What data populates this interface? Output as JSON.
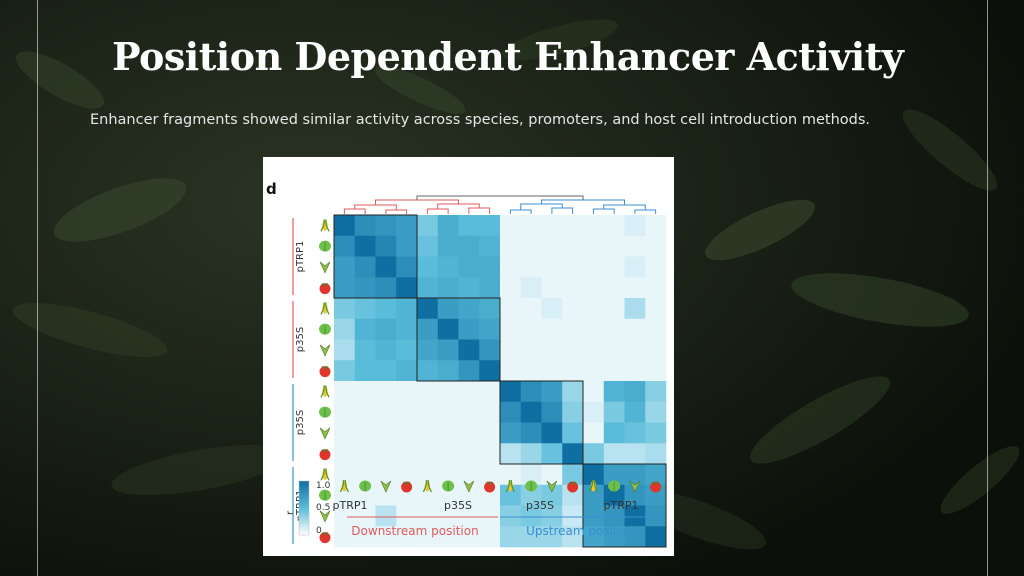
{
  "slide": {
    "title": "Position Dependent Enhancer Activity",
    "subtitle": "Enhancer fragments showed similar activity across species, promoters, and host cell introduction methods."
  },
  "figure": {
    "panel_label": "d",
    "row_groups": [
      "pTRP1",
      "p35S",
      "p35S",
      "pTRP1"
    ],
    "col_groups": [
      "pTRP1",
      "p35S",
      "p35S",
      "pTRP1"
    ],
    "position_labels": [
      "Downstream position",
      "Upstream position"
    ],
    "colorbar": {
      "label": "r",
      "ticks": [
        "1.0",
        "0.5",
        "0"
      ]
    },
    "colors": {
      "downstream": "#e05a5a",
      "upstream": "#3a8fd0",
      "high": "#0f6fa3",
      "low": "#ffffff"
    },
    "species_icons": [
      "maize-icon",
      "arabidopsis-icon",
      "tobacco-icon",
      "tomato-icon"
    ]
  },
  "chart_data": {
    "type": "heatmap",
    "title": "",
    "xlabel": "",
    "ylabel": "",
    "color_scale": [
      0,
      1
    ],
    "groups": [
      {
        "promoter": "pTRP1",
        "position": "Downstream position"
      },
      {
        "promoter": "p35S",
        "position": "Downstream position"
      },
      {
        "promoter": "p35S",
        "position": "Upstream position"
      },
      {
        "promoter": "pTRP1",
        "position": "Upstream position"
      }
    ],
    "species_per_group": [
      "maize",
      "arabidopsis",
      "tobacco",
      "tomato"
    ],
    "values": [
      [
        1.0,
        0.8,
        0.75,
        0.7,
        0.4,
        0.6,
        0.5,
        0.5,
        0.05,
        0.05,
        0.05,
        0.05,
        0.05,
        0.05,
        0.1,
        0.05
      ],
      [
        0.8,
        1.0,
        0.85,
        0.7,
        0.45,
        0.6,
        0.6,
        0.55,
        0.05,
        0.05,
        0.05,
        0.05,
        0.05,
        0.05,
        0.05,
        0.05
      ],
      [
        0.7,
        0.8,
        1.0,
        0.8,
        0.5,
        0.55,
        0.6,
        0.6,
        0.05,
        0.05,
        0.05,
        0.05,
        0.05,
        0.05,
        0.1,
        0.05
      ],
      [
        0.7,
        0.75,
        0.8,
        1.0,
        0.55,
        0.6,
        0.55,
        0.6,
        0.05,
        0.1,
        0.05,
        0.05,
        0.05,
        0.05,
        0.05,
        0.05
      ],
      [
        0.4,
        0.45,
        0.5,
        0.55,
        1.0,
        0.7,
        0.65,
        0.6,
        0.05,
        0.05,
        0.1,
        0.05,
        0.05,
        0.05,
        0.25,
        0.05
      ],
      [
        0.3,
        0.55,
        0.6,
        0.55,
        0.7,
        1.0,
        0.7,
        0.65,
        0.05,
        0.05,
        0.05,
        0.05,
        0.05,
        0.05,
        0.05,
        0.05
      ],
      [
        0.25,
        0.5,
        0.55,
        0.5,
        0.65,
        0.7,
        1.0,
        0.75,
        0.05,
        0.05,
        0.05,
        0.05,
        0.05,
        0.05,
        0.05,
        0.05
      ],
      [
        0.4,
        0.5,
        0.5,
        0.55,
        0.55,
        0.6,
        0.75,
        1.0,
        0.05,
        0.05,
        0.05,
        0.05,
        0.05,
        0.05,
        0.05,
        0.05
      ],
      [
        0.05,
        0.05,
        0.05,
        0.05,
        0.05,
        0.05,
        0.05,
        0.05,
        1.0,
        0.8,
        0.7,
        0.3,
        0.05,
        0.55,
        0.6,
        0.35
      ],
      [
        0.05,
        0.05,
        0.05,
        0.05,
        0.05,
        0.05,
        0.05,
        0.05,
        0.8,
        1.0,
        0.8,
        0.35,
        0.1,
        0.4,
        0.55,
        0.3
      ],
      [
        0.05,
        0.05,
        0.05,
        0.05,
        0.05,
        0.05,
        0.05,
        0.05,
        0.7,
        0.8,
        1.0,
        0.45,
        0.05,
        0.5,
        0.45,
        0.4
      ],
      [
        0.05,
        0.05,
        0.05,
        0.05,
        0.05,
        0.05,
        0.05,
        0.05,
        0.2,
        0.3,
        0.45,
        1.0,
        0.4,
        0.2,
        0.2,
        0.25
      ],
      [
        0.05,
        0.05,
        0.05,
        0.05,
        0.05,
        0.05,
        0.05,
        0.05,
        0.05,
        0.1,
        0.05,
        0.4,
        1.0,
        0.7,
        0.7,
        0.65
      ],
      [
        0.05,
        0.05,
        0.05,
        0.05,
        0.05,
        0.05,
        0.05,
        0.05,
        0.45,
        0.35,
        0.4,
        0.2,
        0.7,
        1.0,
        0.75,
        0.7
      ],
      [
        0.05,
        0.05,
        0.2,
        0.05,
        0.05,
        0.05,
        0.05,
        0.05,
        0.35,
        0.4,
        0.35,
        0.15,
        0.7,
        0.75,
        1.0,
        0.75
      ],
      [
        0.05,
        0.05,
        0.05,
        0.05,
        0.05,
        0.05,
        0.05,
        0.05,
        0.3,
        0.3,
        0.3,
        0.2,
        0.65,
        0.7,
        0.75,
        1.0
      ]
    ]
  }
}
